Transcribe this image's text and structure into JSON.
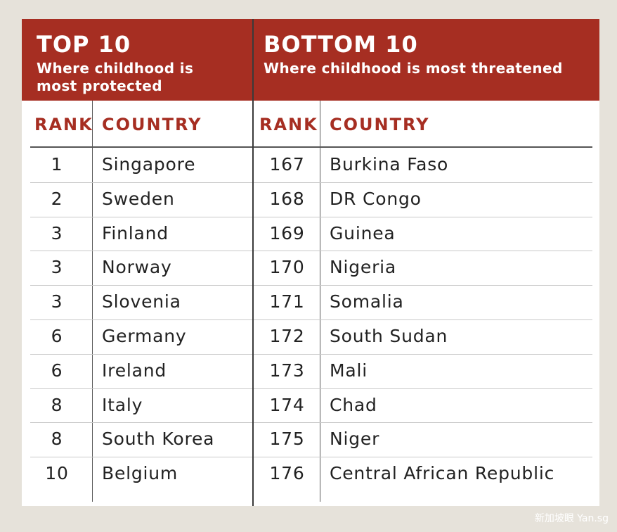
{
  "top": {
    "title": "TOP 10",
    "subtitle_line1": "Where childhood is",
    "subtitle_line2": "most protected",
    "rank_header": "RANK",
    "country_header": "COUNTRY",
    "rows": [
      {
        "rank": "1",
        "country": "Singapore"
      },
      {
        "rank": "2",
        "country": "Sweden"
      },
      {
        "rank": "3",
        "country": "Finland"
      },
      {
        "rank": "3",
        "country": "Norway"
      },
      {
        "rank": "3",
        "country": "Slovenia"
      },
      {
        "rank": "6",
        "country": "Germany"
      },
      {
        "rank": "6",
        "country": "Ireland"
      },
      {
        "rank": "8",
        "country": "Italy"
      },
      {
        "rank": "8",
        "country": "South Korea"
      },
      {
        "rank": "10",
        "country": "Belgium"
      }
    ]
  },
  "bottom": {
    "title": "BOTTOM 10",
    "subtitle_line1": "Where childhood is most threatened",
    "rank_header": "RANK",
    "country_header": "COUNTRY",
    "rows": [
      {
        "rank": "167",
        "country": "Burkina Faso"
      },
      {
        "rank": "168",
        "country": "DR Congo"
      },
      {
        "rank": "169",
        "country": "Guinea"
      },
      {
        "rank": "170",
        "country": "Nigeria"
      },
      {
        "rank": "171",
        "country": "Somalia"
      },
      {
        "rank": "172",
        "country": "South Sudan"
      },
      {
        "rank": "173",
        "country": "Mali"
      },
      {
        "rank": "174",
        "country": "Chad"
      },
      {
        "rank": "175",
        "country": "Niger"
      },
      {
        "rank": "176",
        "country": "Central African Republic"
      }
    ]
  },
  "watermark": "新加坡眼 Yan.sg",
  "colors": {
    "header_red": "#a62e22",
    "background": "#e6e2da",
    "text": "#222222"
  }
}
